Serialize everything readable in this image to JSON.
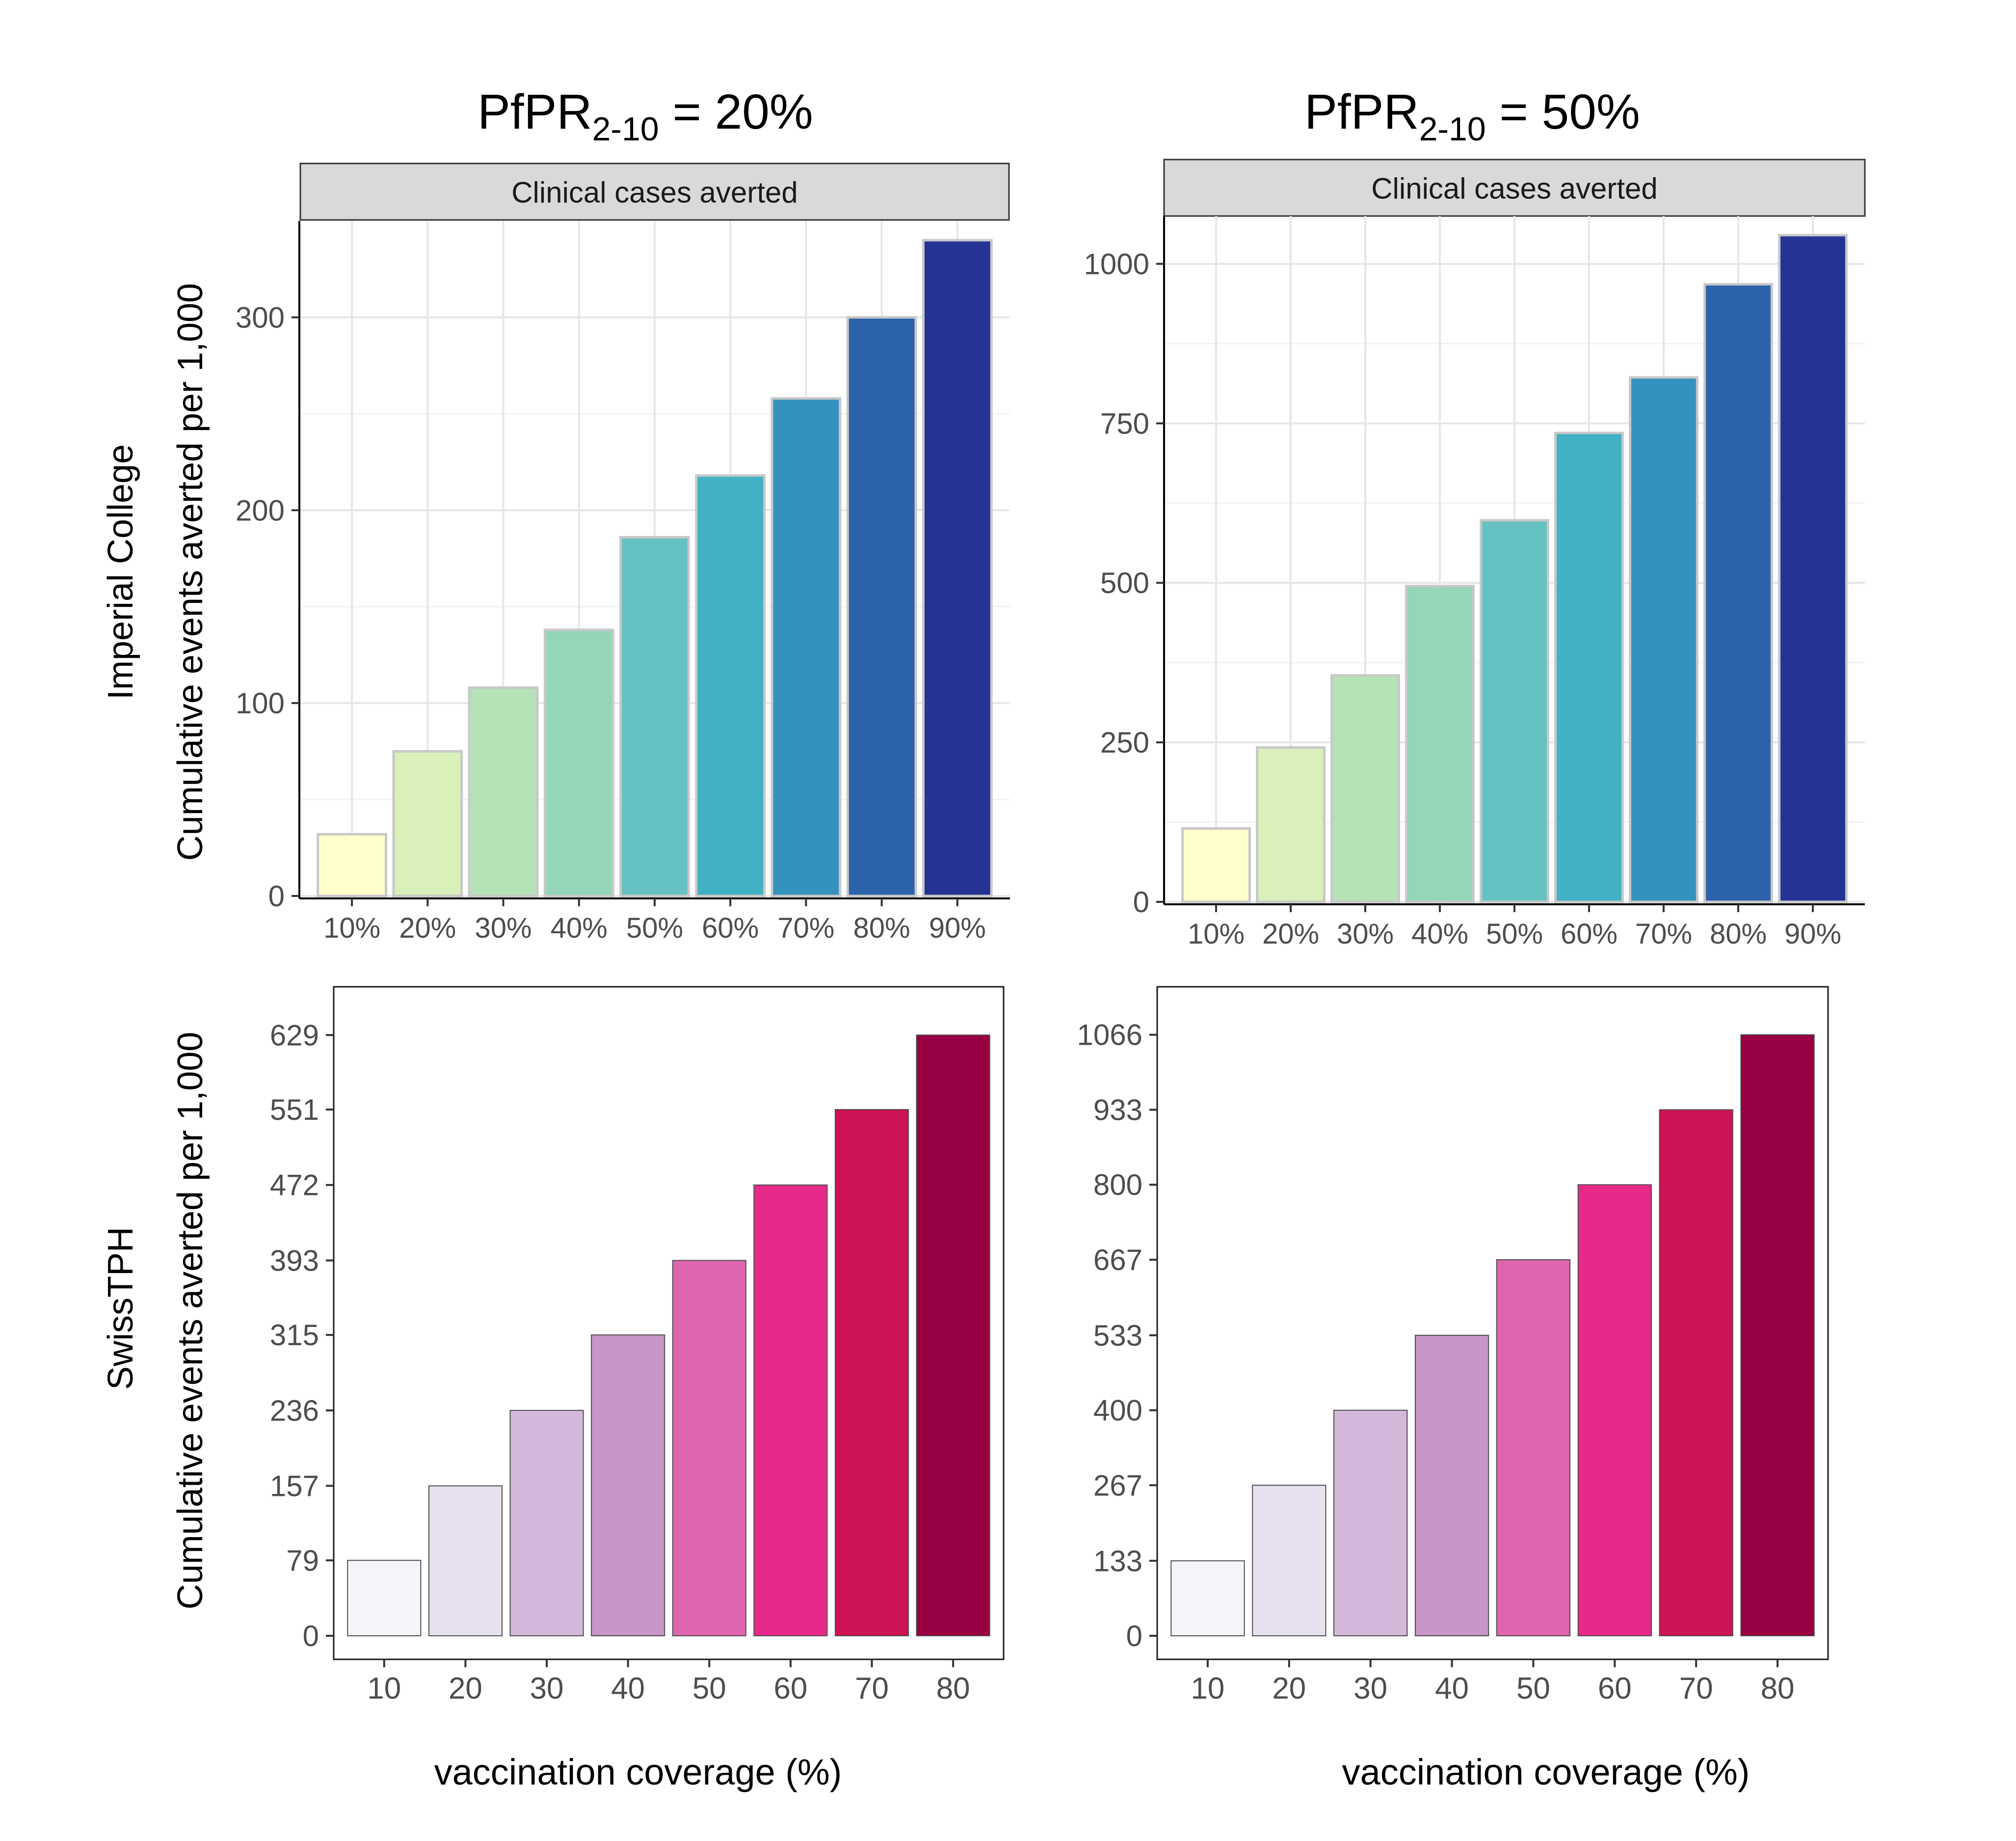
{
  "column_titles": [
    {
      "prefix": "PfPR",
      "subscript": "2-10",
      "suffix": " = 20%"
    },
    {
      "prefix": "PfPR",
      "subscript": "2-10",
      "suffix": " = 50%"
    }
  ],
  "row_labels": [
    "Imperial College",
    "SwissTPH"
  ],
  "shared_ylabel": "Cumulative events averted per 1,000",
  "shared_xlabel": "vaccination coverage (%)",
  "colors": {
    "imperial": [
      "#ffffcc",
      "#d9f0bb",
      "#b5e2b6",
      "#95d5b8",
      "#66c2c2",
      "#41b1c4",
      "#3592be",
      "#2d63aa",
      "#253494"
    ],
    "swiss": [
      "#f6f4f9",
      "#e7e1ef",
      "#d4b8da",
      "#c994c7",
      "#df65b0",
      "#e7298a",
      "#ce1256",
      "#980043"
    ]
  },
  "chart_data": [
    {
      "id": "imperial-20",
      "type": "bar",
      "model": "Imperial College",
      "strip": "Clinical cases averted",
      "categories": [
        "10%",
        "20%",
        "30%",
        "40%",
        "50%",
        "60%",
        "70%",
        "80%",
        "90%"
      ],
      "values": [
        32,
        75,
        108,
        138,
        186,
        218,
        258,
        300,
        340
      ],
      "ylim": [
        0,
        350
      ],
      "yticks": [
        0,
        100,
        200,
        300
      ],
      "yticks_minor": [
        50,
        150,
        250
      ],
      "ytick_labels": [
        "0",
        "100",
        "200",
        "300"
      ],
      "grid": true
    },
    {
      "id": "imperial-50",
      "type": "bar",
      "model": "Imperial College",
      "strip": "Clinical cases averted",
      "categories": [
        "10%",
        "20%",
        "30%",
        "40%",
        "50%",
        "60%",
        "70%",
        "80%",
        "90%"
      ],
      "values": [
        115,
        242,
        355,
        495,
        598,
        735,
        822,
        968,
        1045
      ],
      "ylim": [
        0,
        1075
      ],
      "yticks": [
        0,
        250,
        500,
        750,
        1000
      ],
      "yticks_minor": [
        125,
        375,
        625,
        875
      ],
      "ytick_labels": [
        "0",
        "250",
        "500",
        "750",
        "1000"
      ],
      "grid": true
    },
    {
      "id": "swiss-20",
      "type": "bar",
      "model": "SwissTPH",
      "categories": [
        "10",
        "20",
        "30",
        "40",
        "50",
        "60",
        "70",
        "80"
      ],
      "values": [
        79,
        157,
        236,
        315,
        393,
        472,
        551,
        629
      ],
      "ylim": [
        0,
        660
      ],
      "yticks": [
        0,
        79,
        157,
        236,
        315,
        393,
        472,
        551,
        629
      ],
      "ytick_labels": [
        "0",
        "79",
        "157",
        "236",
        "315",
        "393",
        "472",
        "551",
        "629"
      ],
      "grid": false
    },
    {
      "id": "swiss-50",
      "type": "bar",
      "model": "SwissTPH",
      "categories": [
        "10",
        "20",
        "30",
        "40",
        "50",
        "60",
        "70",
        "80"
      ],
      "values": [
        133,
        267,
        400,
        533,
        667,
        800,
        933,
        1066
      ],
      "ylim": [
        0,
        1118
      ],
      "yticks": [
        0,
        133,
        267,
        400,
        533,
        667,
        800,
        933,
        1066
      ],
      "ytick_labels": [
        "0",
        "133",
        "267",
        "400",
        "533",
        "667",
        "800",
        "933",
        "1066"
      ],
      "grid": false
    }
  ]
}
